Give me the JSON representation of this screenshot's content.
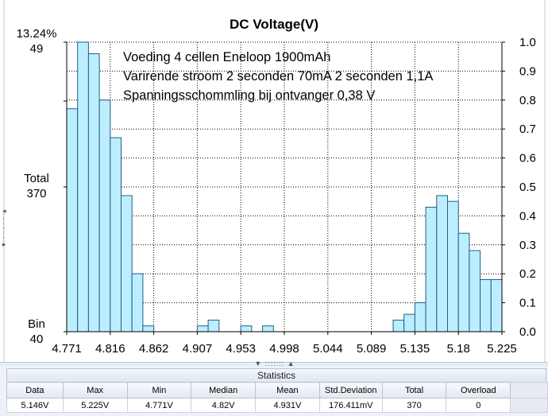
{
  "chart_data": {
    "type": "bar",
    "title": "DC Voltage(V)",
    "annotations": [
      "Voeding 4 cellen Eneloop 1900mAh",
      "Varirende stroom 2 seconden 70mA 2 seconden 1,1A",
      "Spanningsschommling bij ontvanger 0,38 V"
    ],
    "left_axis": {
      "top_percent": "13.24%",
      "top_count": "49",
      "total_label": "Total",
      "total_value": "370",
      "bin_label": "Bin",
      "bin_value": "40"
    },
    "x_ticks": [
      "4.771",
      "4.816",
      "4.862",
      "4.907",
      "4.953",
      "4.998",
      "5.044",
      "5.089",
      "5.135",
      "5.18",
      "5.225"
    ],
    "xlim": [
      4.771,
      5.225
    ],
    "y_ticks": [
      "1.0",
      "0.9",
      "0.8",
      "0.7",
      "0.6",
      "0.5",
      "0.4",
      "0.3",
      "0.2",
      "0.1",
      "0.0"
    ],
    "ylim": [
      0,
      1.0
    ],
    "bin_count": 40,
    "values": [
      0.77,
      1.0,
      0.96,
      0.8,
      0.67,
      0.47,
      0.2,
      0.02,
      0,
      0,
      0,
      0,
      0.02,
      0.04,
      0,
      0,
      0.02,
      0,
      0.02,
      0,
      0,
      0,
      0,
      0,
      0,
      0,
      0,
      0,
      0,
      0,
      0.04,
      0.06,
      0.1,
      0.43,
      0.47,
      0.45,
      0.34,
      0.28,
      0.18,
      0.18
    ]
  },
  "colors": {
    "bar_fill": "#bdeeff",
    "bar_stroke": "#1f5f8a",
    "grid": "#000000"
  },
  "statistics": {
    "title": "Statistics",
    "headers": [
      "Data",
      "Max",
      "Min",
      "Median",
      "Mean",
      "Std.Deviation",
      "Total",
      "Overload"
    ],
    "values": [
      "5.146V",
      "5.225V",
      "4.771V",
      "4.82V",
      "4.931V",
      "176.411mV",
      "370",
      "0"
    ]
  }
}
